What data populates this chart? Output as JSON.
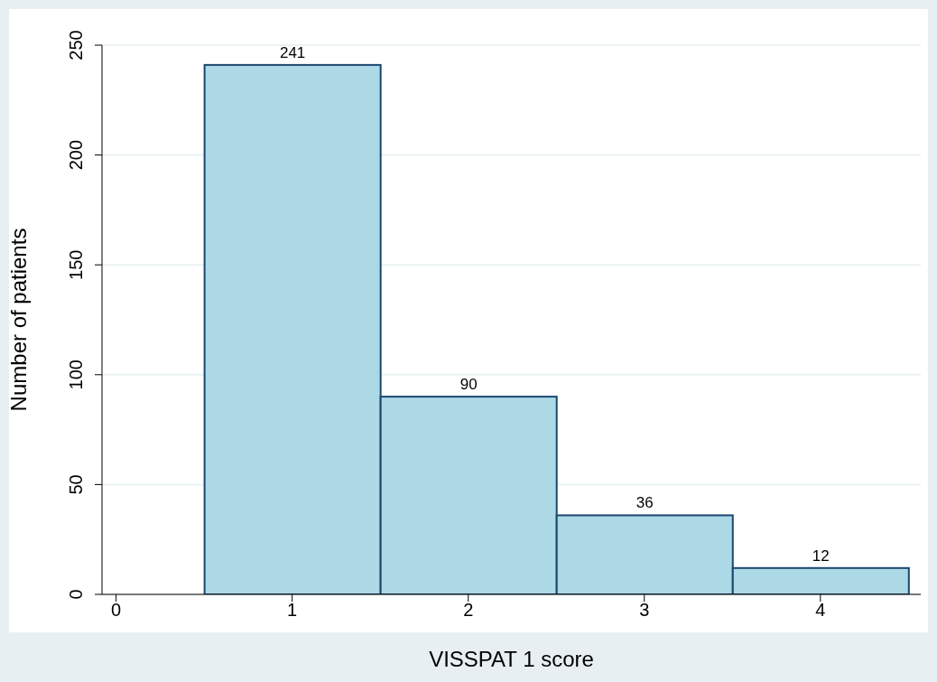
{
  "chart_data": {
    "type": "histogram",
    "xlabel": "VISSPAT 1 score",
    "ylabel": "Number of patients",
    "bins": [
      0.5,
      1.5,
      2.5,
      3.5,
      4.5
    ],
    "values": [
      241,
      90,
      36,
      12
    ],
    "color": "#add8e6",
    "xlim": [
      -0.08,
      4.57
    ],
    "xticks": [
      0,
      1,
      2,
      3,
      4
    ],
    "ylim": [
      0,
      250
    ],
    "yticks": [
      0,
      50,
      100,
      150,
      200,
      250
    ],
    "grid": "y",
    "data_labels": true
  }
}
